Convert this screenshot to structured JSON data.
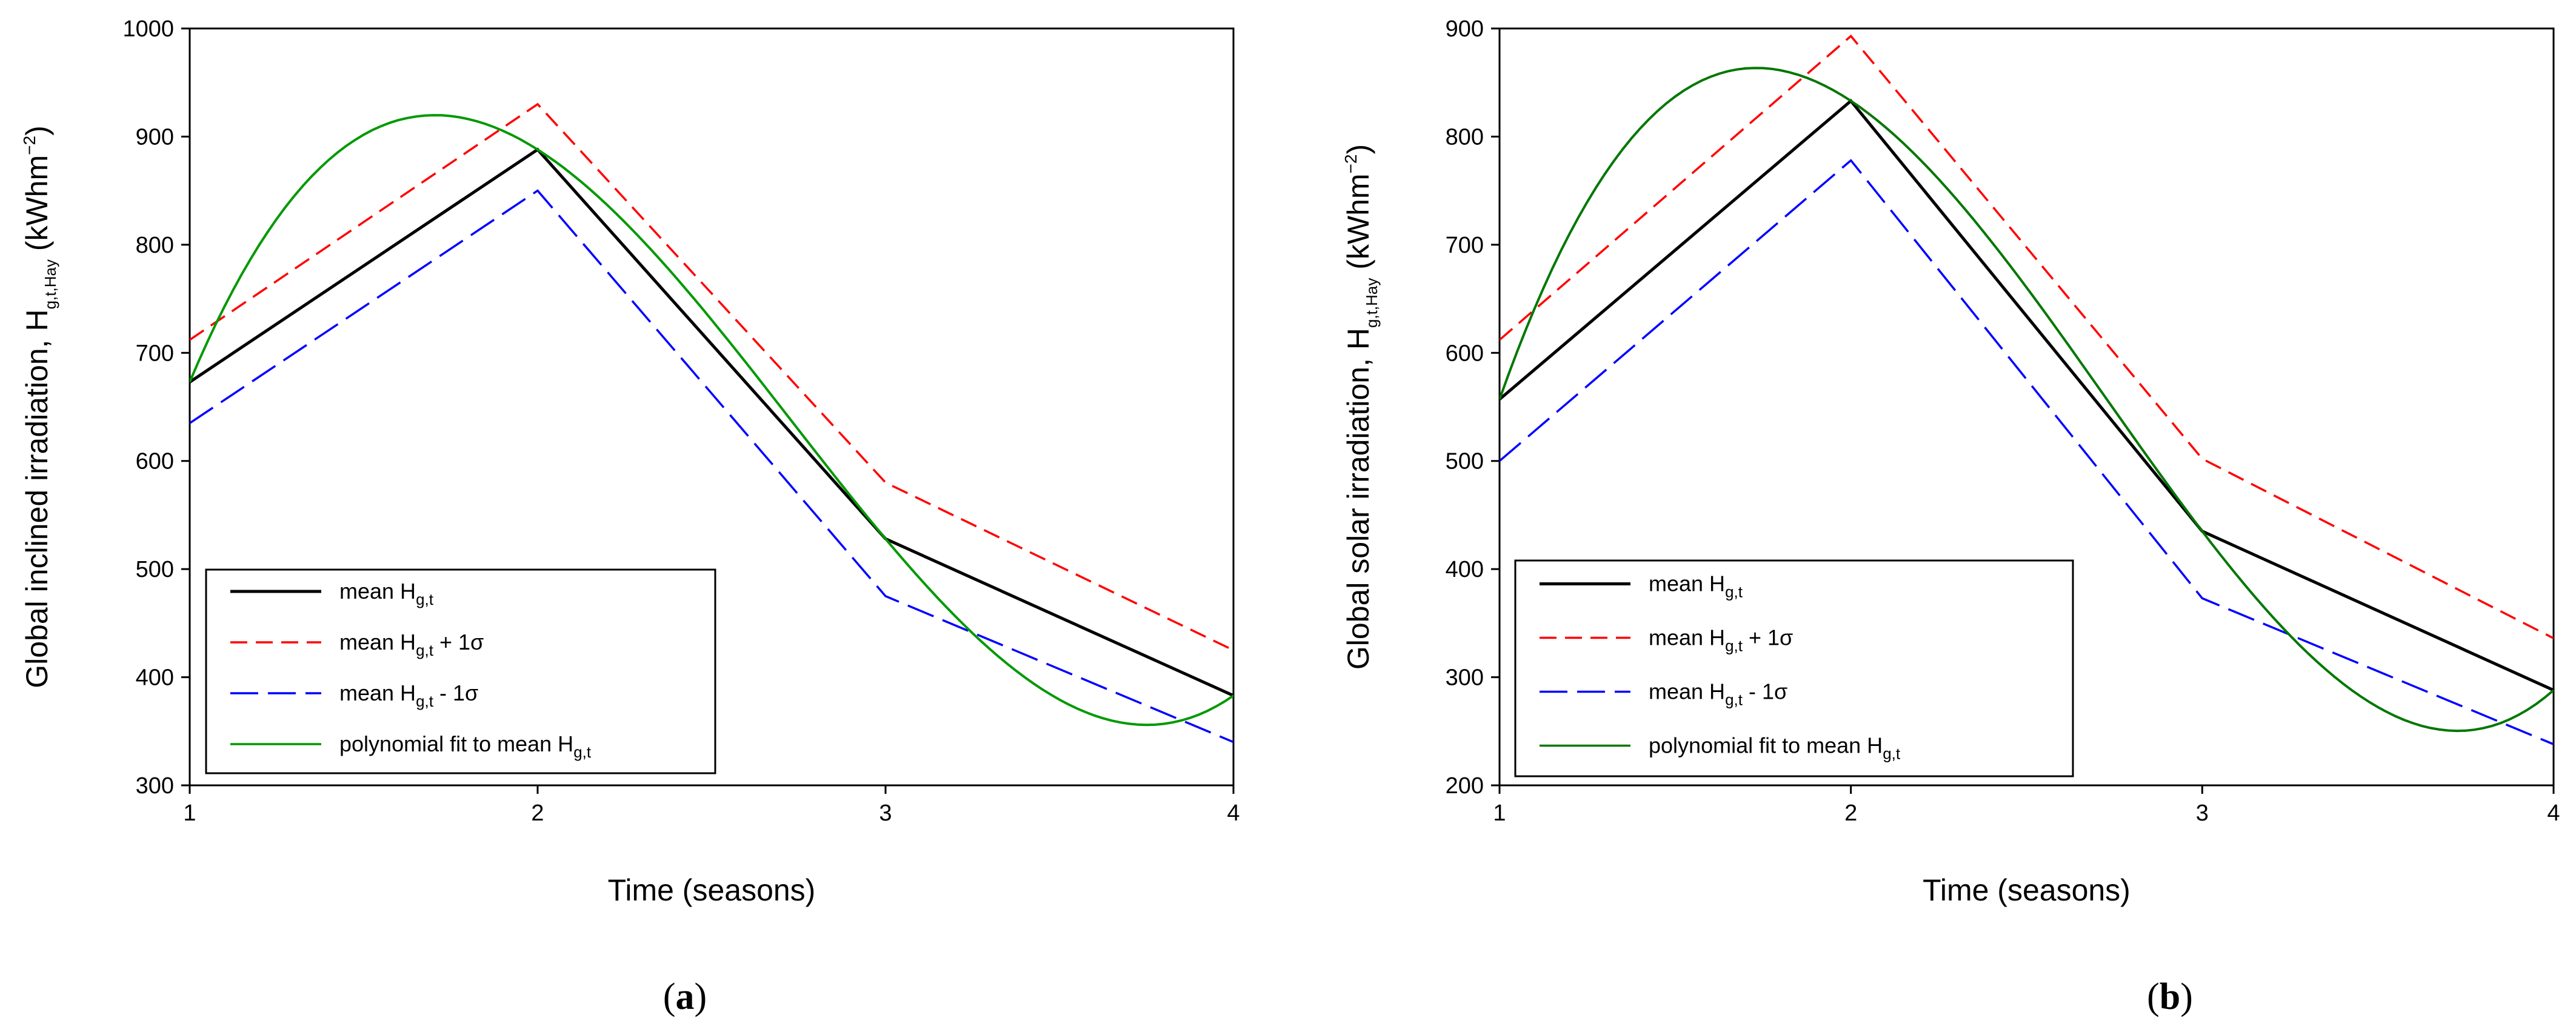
{
  "chart_data": [
    {
      "type": "line",
      "panel_label": "a",
      "xlabel": "Time (seasons)",
      "ylabel_main": "Global inclined irradiation, H",
      "ylabel_sub": "g,t,Hay",
      "ylabel_unit": " (kWhm",
      "ylabel_sup": "−2",
      "ylabel_close": ")",
      "xlim": [
        1,
        4
      ],
      "ylim": [
        300,
        1000
      ],
      "xticks": [
        "1",
        "2",
        "3",
        "4"
      ],
      "yticks": [
        "300",
        "400",
        "500",
        "600",
        "700",
        "800",
        "900",
        "1000"
      ],
      "grid": false,
      "legend_position": "lower-left",
      "x": [
        1,
        2,
        3,
        4
      ],
      "series": [
        {
          "name": "mean",
          "legend_main": "mean H",
          "legend_sub": "g,t",
          "legend_tail": "",
          "color": "#000000",
          "dash": "solid",
          "values": [
            673,
            888,
            528,
            383
          ]
        },
        {
          "name": "mean_plus_1sigma",
          "legend_main": "mean H",
          "legend_sub": "g,t",
          "legend_tail": " + 1σ",
          "color": "#ff0000",
          "dash": "dashed",
          "values": [
            712,
            930,
            580,
            425
          ]
        },
        {
          "name": "mean_minus_1sigma",
          "legend_main": "mean H",
          "legend_sub": "g,t",
          "legend_tail": " - 1σ",
          "color": "#0000ff",
          "dash": "longdash",
          "values": [
            635,
            850,
            475,
            340
          ]
        },
        {
          "name": "polynomial_fit",
          "legend_main": "polynomial fit to mean H",
          "legend_sub": "g,t",
          "legend_tail": "",
          "color": "#009900",
          "dash": "solid",
          "values": [
            673,
            888,
            528,
            383
          ]
        }
      ]
    },
    {
      "type": "line",
      "panel_label": "b",
      "xlabel": "Time (seasons)",
      "ylabel_main": "Global solar irradiation, H",
      "ylabel_sub": "g,t,Hay",
      "ylabel_unit": " (kWhm",
      "ylabel_sup": "−2",
      "ylabel_close": ")",
      "xlim": [
        1,
        4
      ],
      "ylim": [
        200,
        900
      ],
      "xticks": [
        "1",
        "2",
        "3",
        "4"
      ],
      "yticks": [
        "200",
        "300",
        "400",
        "500",
        "600",
        "700",
        "800",
        "900"
      ],
      "grid": false,
      "legend_position": "lower-left",
      "x": [
        1,
        2,
        3,
        4
      ],
      "series": [
        {
          "name": "mean",
          "legend_main": "mean H",
          "legend_sub": "g,t",
          "legend_tail": "",
          "color": "#000000",
          "dash": "solid",
          "values": [
            557,
            833,
            435,
            288
          ]
        },
        {
          "name": "mean_plus_1sigma",
          "legend_main": "mean H",
          "legend_sub": "g,t",
          "legend_tail": " + 1σ",
          "color": "#ff0000",
          "dash": "dashed",
          "values": [
            612,
            893,
            502,
            336
          ]
        },
        {
          "name": "mean_minus_1sigma",
          "legend_main": "mean H",
          "legend_sub": "g,t",
          "legend_tail": " - 1σ",
          "color": "#0000ff",
          "dash": "longdash",
          "values": [
            500,
            778,
            373,
            238
          ]
        },
        {
          "name": "polynomial_fit",
          "legend_main": "polynomial fit to mean H",
          "legend_sub": "g,t",
          "legend_tail": "",
          "color": "#007700",
          "dash": "solid",
          "values": [
            557,
            833,
            435,
            288
          ]
        }
      ]
    }
  ]
}
